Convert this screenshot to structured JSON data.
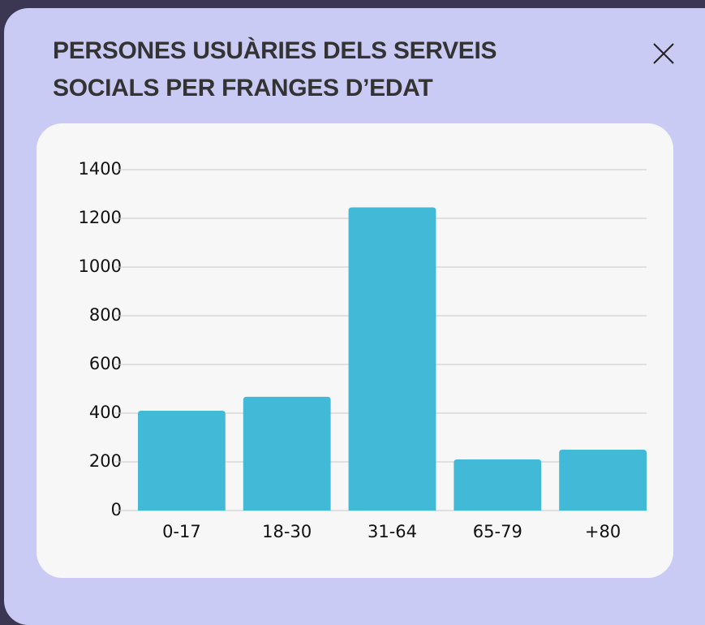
{
  "modal": {
    "title": "PERSONES USUÀRIES DELS SERVEIS SOCIALS PER FRANGES D’EDAT"
  },
  "chart_data": {
    "type": "bar",
    "categories": [
      "0-17",
      "18-30",
      "31-64",
      "65-79",
      "+80"
    ],
    "values": [
      410,
      467,
      1245,
      210,
      250
    ],
    "color": "#42b9d7",
    "ylim": [
      0,
      1400
    ],
    "yticks": [
      0,
      200,
      400,
      600,
      800,
      1000,
      1200,
      1400
    ],
    "grid": true
  }
}
